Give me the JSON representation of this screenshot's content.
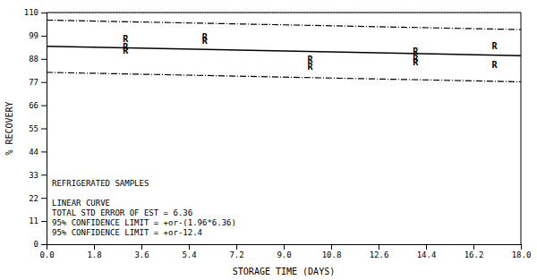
{
  "chart_data": {
    "type": "scatter",
    "xlabel": "STORAGE TIME (DAYS)",
    "ylabel": "% RECOVERY",
    "color": "black",
    "xlim": [
      0.0,
      18.0
    ],
    "ylim": [
      0,
      110
    ],
    "xticks": [
      {
        "value": 0.0,
        "label": "0.0"
      },
      1.8,
      3.6,
      5.4,
      7.2,
      {
        "value": 9.0,
        "label": "9.0"
      },
      10.8,
      12.6,
      14.4,
      16.2,
      {
        "value": 18.0,
        "label": "18.0"
      }
    ],
    "yticks": [
      0,
      11,
      22,
      33,
      44,
      55,
      66,
      77,
      88,
      99,
      110
    ],
    "series": [
      {
        "type": "hline",
        "line_style": "dotted",
        "values": [
          110
        ]
      },
      {
        "type": "line",
        "line_style": "dashdot",
        "x": [
          0.0,
          18.0
        ],
        "values": [
          106.4,
          101.9
        ]
      },
      {
        "type": "line",
        "line_style": "dashdot",
        "x": [
          0.0,
          18.0
        ],
        "values": [
          81.6,
          77.1
        ]
      },
      {
        "type": "line",
        "line_style": "solid",
        "x": [
          0.0,
          18.0
        ],
        "values": [
          94.0,
          89.5
        ]
      },
      {
        "type": "scatter",
        "marker": "R",
        "x": [
          3.0,
          3.0,
          3.0,
          6.0,
          6.0,
          10.0,
          10.0,
          14.0,
          14.0,
          14.0,
          17.0,
          17.0
        ],
        "values": [
          97.5,
          93.5,
          92.0,
          98.5,
          96.5,
          87.5,
          84.5,
          91.5,
          88.0,
          86.5,
          94.0,
          85.0
        ]
      }
    ],
    "annotations": [
      {
        "lines": [
          "REFRIGERATED SAMPLES"
        ]
      },
      {
        "lines": [
          "LINEAR CURVE",
          "TOTAL STD ERROR OF EST = 6.36",
          "95% CONFIDENCE LIMIT = +or-(1.96*6.36)",
          "95% CONFIDENCE LIMIT = +or-12.4"
        ]
      }
    ]
  }
}
